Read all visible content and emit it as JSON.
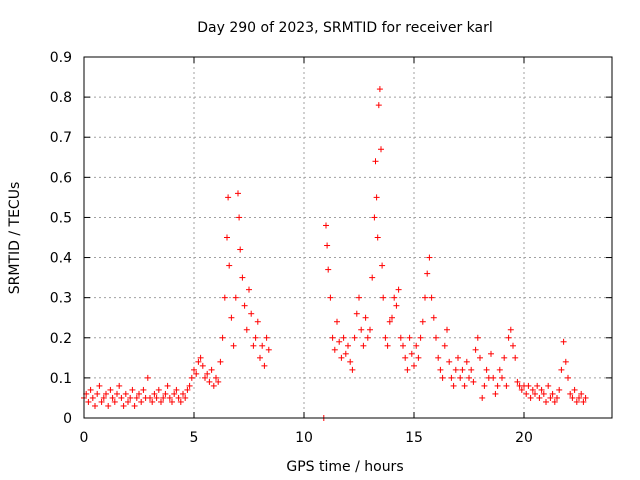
{
  "chart_data": {
    "type": "scatter",
    "title": "Day 290 of 2023, SRMTID for receiver karl",
    "xlabel": "GPS time / hours",
    "ylabel": "SRMTID / TECUs",
    "xlim": [
      0,
      24
    ],
    "ylim": [
      0,
      0.9
    ],
    "xticks": [
      0,
      5,
      10,
      15,
      20
    ],
    "yticks": [
      0,
      0.1,
      0.2,
      0.3,
      0.4,
      0.5,
      0.6,
      0.7,
      0.8,
      0.9
    ],
    "xtick_labels": [
      "0",
      "5",
      "10",
      "15",
      "20"
    ],
    "ytick_labels": [
      "0",
      "0.1",
      "0.2",
      "0.3",
      "0.4",
      "0.5",
      "0.6",
      "0.7",
      "0.8",
      "0.9"
    ],
    "grid": true,
    "marker": "+",
    "series": [
      {
        "name": "SRMTID",
        "color": "#ff0000",
        "points": [
          [
            0.0,
            0.05
          ],
          [
            0.1,
            0.06
          ],
          [
            0.2,
            0.04
          ],
          [
            0.3,
            0.07
          ],
          [
            0.4,
            0.05
          ],
          [
            0.5,
            0.03
          ],
          [
            0.6,
            0.06
          ],
          [
            0.7,
            0.08
          ],
          [
            0.8,
            0.04
          ],
          [
            0.9,
            0.05
          ],
          [
            1.0,
            0.06
          ],
          [
            1.1,
            0.03
          ],
          [
            1.2,
            0.07
          ],
          [
            1.3,
            0.05
          ],
          [
            1.4,
            0.04
          ],
          [
            1.5,
            0.06
          ],
          [
            1.6,
            0.08
          ],
          [
            1.7,
            0.05
          ],
          [
            1.8,
            0.03
          ],
          [
            1.9,
            0.06
          ],
          [
            2.0,
            0.04
          ],
          [
            2.1,
            0.05
          ],
          [
            2.2,
            0.07
          ],
          [
            2.3,
            0.03
          ],
          [
            2.4,
            0.05
          ],
          [
            2.5,
            0.06
          ],
          [
            2.6,
            0.04
          ],
          [
            2.7,
            0.07
          ],
          [
            2.8,
            0.05
          ],
          [
            2.9,
            0.1
          ],
          [
            3.0,
            0.05
          ],
          [
            3.1,
            0.04
          ],
          [
            3.2,
            0.06
          ],
          [
            3.3,
            0.05
          ],
          [
            3.4,
            0.07
          ],
          [
            3.5,
            0.04
          ],
          [
            3.6,
            0.05
          ],
          [
            3.7,
            0.06
          ],
          [
            3.8,
            0.08
          ],
          [
            3.9,
            0.05
          ],
          [
            4.0,
            0.04
          ],
          [
            4.1,
            0.06
          ],
          [
            4.2,
            0.07
          ],
          [
            4.3,
            0.05
          ],
          [
            4.4,
            0.04
          ],
          [
            4.5,
            0.06
          ],
          [
            4.6,
            0.05
          ],
          [
            4.7,
            0.07
          ],
          [
            4.8,
            0.08
          ],
          [
            4.9,
            0.1
          ],
          [
            5.0,
            0.12
          ],
          [
            5.1,
            0.11
          ],
          [
            5.2,
            0.14
          ],
          [
            5.3,
            0.15
          ],
          [
            5.4,
            0.13
          ],
          [
            5.5,
            0.1
          ],
          [
            5.6,
            0.11
          ],
          [
            5.7,
            0.09
          ],
          [
            5.8,
            0.12
          ],
          [
            5.9,
            0.08
          ],
          [
            6.0,
            0.1
          ],
          [
            6.1,
            0.09
          ],
          [
            6.2,
            0.14
          ],
          [
            6.3,
            0.2
          ],
          [
            6.4,
            0.3
          ],
          [
            6.5,
            0.45
          ],
          [
            6.55,
            0.55
          ],
          [
            6.6,
            0.38
          ],
          [
            6.7,
            0.25
          ],
          [
            6.8,
            0.18
          ],
          [
            6.9,
            0.3
          ],
          [
            7.0,
            0.56
          ],
          [
            7.05,
            0.5
          ],
          [
            7.1,
            0.42
          ],
          [
            7.2,
            0.35
          ],
          [
            7.3,
            0.28
          ],
          [
            7.4,
            0.22
          ],
          [
            7.5,
            0.32
          ],
          [
            7.6,
            0.26
          ],
          [
            7.7,
            0.18
          ],
          [
            7.8,
            0.2
          ],
          [
            7.9,
            0.24
          ],
          [
            8.0,
            0.15
          ],
          [
            8.1,
            0.18
          ],
          [
            8.2,
            0.13
          ],
          [
            8.3,
            0.2
          ],
          [
            8.4,
            0.17
          ],
          [
            10.9,
            0.0
          ],
          [
            11.0,
            0.48
          ],
          [
            11.05,
            0.43
          ],
          [
            11.1,
            0.37
          ],
          [
            11.2,
            0.3
          ],
          [
            11.3,
            0.2
          ],
          [
            11.4,
            0.17
          ],
          [
            11.5,
            0.24
          ],
          [
            11.6,
            0.19
          ],
          [
            11.7,
            0.15
          ],
          [
            11.8,
            0.2
          ],
          [
            11.9,
            0.16
          ],
          [
            12.0,
            0.18
          ],
          [
            12.1,
            0.14
          ],
          [
            12.2,
            0.12
          ],
          [
            12.3,
            0.2
          ],
          [
            12.4,
            0.26
          ],
          [
            12.5,
            0.3
          ],
          [
            12.6,
            0.22
          ],
          [
            12.7,
            0.18
          ],
          [
            12.8,
            0.25
          ],
          [
            12.9,
            0.2
          ],
          [
            13.0,
            0.22
          ],
          [
            13.1,
            0.35
          ],
          [
            13.2,
            0.5
          ],
          [
            13.25,
            0.64
          ],
          [
            13.3,
            0.55
          ],
          [
            13.35,
            0.45
          ],
          [
            13.4,
            0.78
          ],
          [
            13.45,
            0.82
          ],
          [
            13.5,
            0.67
          ],
          [
            13.55,
            0.38
          ],
          [
            13.6,
            0.3
          ],
          [
            13.7,
            0.2
          ],
          [
            13.8,
            0.18
          ],
          [
            13.9,
            0.24
          ],
          [
            14.0,
            0.25
          ],
          [
            14.1,
            0.3
          ],
          [
            14.2,
            0.28
          ],
          [
            14.3,
            0.32
          ],
          [
            14.4,
            0.2
          ],
          [
            14.5,
            0.18
          ],
          [
            14.6,
            0.15
          ],
          [
            14.7,
            0.12
          ],
          [
            14.8,
            0.2
          ],
          [
            14.9,
            0.16
          ],
          [
            15.0,
            0.13
          ],
          [
            15.1,
            0.18
          ],
          [
            15.2,
            0.15
          ],
          [
            15.3,
            0.2
          ],
          [
            15.4,
            0.24
          ],
          [
            15.5,
            0.3
          ],
          [
            15.6,
            0.36
          ],
          [
            15.7,
            0.4
          ],
          [
            15.8,
            0.3
          ],
          [
            15.9,
            0.25
          ],
          [
            16.0,
            0.2
          ],
          [
            16.1,
            0.15
          ],
          [
            16.2,
            0.12
          ],
          [
            16.3,
            0.1
          ],
          [
            16.4,
            0.18
          ],
          [
            16.5,
            0.22
          ],
          [
            16.6,
            0.14
          ],
          [
            16.7,
            0.1
          ],
          [
            16.8,
            0.08
          ],
          [
            16.9,
            0.12
          ],
          [
            17.0,
            0.15
          ],
          [
            17.1,
            0.1
          ],
          [
            17.2,
            0.12
          ],
          [
            17.3,
            0.08
          ],
          [
            17.4,
            0.14
          ],
          [
            17.5,
            0.1
          ],
          [
            17.6,
            0.12
          ],
          [
            17.7,
            0.09
          ],
          [
            17.8,
            0.17
          ],
          [
            17.9,
            0.2
          ],
          [
            18.0,
            0.15
          ],
          [
            18.1,
            0.05
          ],
          [
            18.2,
            0.08
          ],
          [
            18.3,
            0.12
          ],
          [
            18.4,
            0.1
          ],
          [
            18.5,
            0.16
          ],
          [
            18.6,
            0.1
          ],
          [
            18.7,
            0.06
          ],
          [
            18.8,
            0.08
          ],
          [
            18.9,
            0.12
          ],
          [
            19.0,
            0.1
          ],
          [
            19.1,
            0.15
          ],
          [
            19.2,
            0.08
          ],
          [
            19.3,
            0.2
          ],
          [
            19.4,
            0.22
          ],
          [
            19.5,
            0.18
          ],
          [
            19.6,
            0.15
          ],
          [
            19.7,
            0.09
          ],
          [
            19.8,
            0.08
          ],
          [
            19.9,
            0.07
          ],
          [
            20.0,
            0.08
          ],
          [
            20.1,
            0.06
          ],
          [
            20.2,
            0.08
          ],
          [
            20.3,
            0.05
          ],
          [
            20.4,
            0.07
          ],
          [
            20.5,
            0.06
          ],
          [
            20.6,
            0.08
          ],
          [
            20.7,
            0.05
          ],
          [
            20.8,
            0.07
          ],
          [
            20.9,
            0.06
          ],
          [
            21.0,
            0.04
          ],
          [
            21.1,
            0.08
          ],
          [
            21.2,
            0.05
          ],
          [
            21.3,
            0.06
          ],
          [
            21.4,
            0.04
          ],
          [
            21.5,
            0.05
          ],
          [
            21.6,
            0.07
          ],
          [
            21.7,
            0.12
          ],
          [
            21.8,
            0.19
          ],
          [
            21.9,
            0.14
          ],
          [
            22.0,
            0.1
          ],
          [
            22.1,
            0.06
          ],
          [
            22.2,
            0.05
          ],
          [
            22.3,
            0.07
          ],
          [
            22.4,
            0.04
          ],
          [
            22.5,
            0.05
          ],
          [
            22.6,
            0.06
          ],
          [
            22.7,
            0.04
          ],
          [
            22.8,
            0.05
          ]
        ]
      }
    ]
  }
}
